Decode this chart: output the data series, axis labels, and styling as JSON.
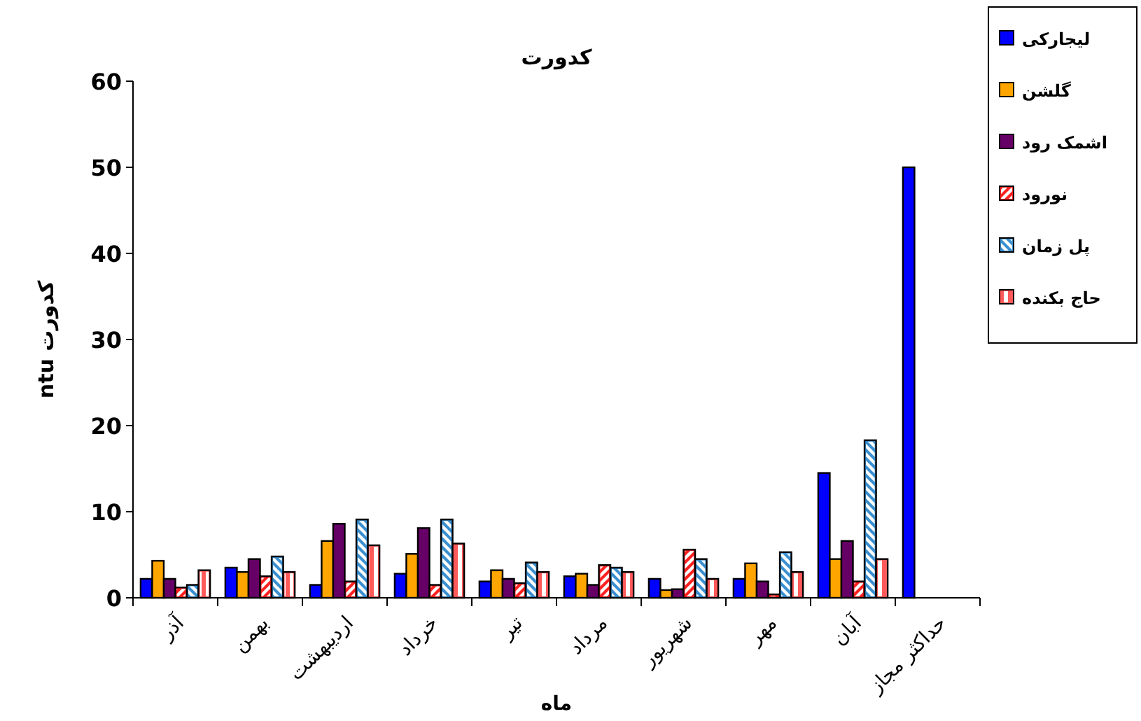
{
  "chart_data": {
    "type": "bar",
    "title": "کدورت",
    "xlabel": "ماه",
    "ylabel": "ntu کدورت",
    "categories": [
      "آذر",
      "بهمن",
      "اردیبهشت",
      "خرداد",
      "تیر",
      "مرداد",
      "شهریور",
      "مهر",
      "آبان",
      "حداکثر مجاز"
    ],
    "series": [
      {
        "name": "لیجارکی",
        "color": "#0000ff",
        "values": [
          2.2,
          3.5,
          1.5,
          2.8,
          1.9,
          2.5,
          2.2,
          2.2,
          14.5,
          50
        ]
      },
      {
        "name": "گلشن",
        "color": "#ffa500",
        "values": [
          4.3,
          3.0,
          6.6,
          5.1,
          3.2,
          2.8,
          0.9,
          4.0,
          4.5,
          null
        ]
      },
      {
        "name": "اشمک رود",
        "color": "#660066",
        "values": [
          2.2,
          4.5,
          8.6,
          8.1,
          2.2,
          1.5,
          1.0,
          1.9,
          6.6,
          null
        ]
      },
      {
        "name": "نورود",
        "color": "#ff2020",
        "values": [
          1.2,
          2.5,
          1.9,
          1.5,
          1.7,
          3.8,
          5.6,
          0.4,
          1.9,
          null
        ]
      },
      {
        "name": "پل زمان",
        "color": "#3a8fd0",
        "values": [
          1.5,
          4.8,
          9.1,
          9.1,
          4.1,
          3.5,
          4.5,
          5.3,
          18.3,
          null
        ]
      },
      {
        "name": "حاج بکنده",
        "color": "#ff5a5a",
        "values": [
          3.2,
          3.0,
          6.1,
          6.3,
          3.0,
          3.0,
          2.2,
          3.0,
          4.5,
          null
        ]
      }
    ],
    "ylim": [
      0,
      60
    ],
    "yticks": [
      0,
      10,
      20,
      30,
      40,
      50,
      60
    ],
    "grid": false,
    "legend": "top right"
  }
}
